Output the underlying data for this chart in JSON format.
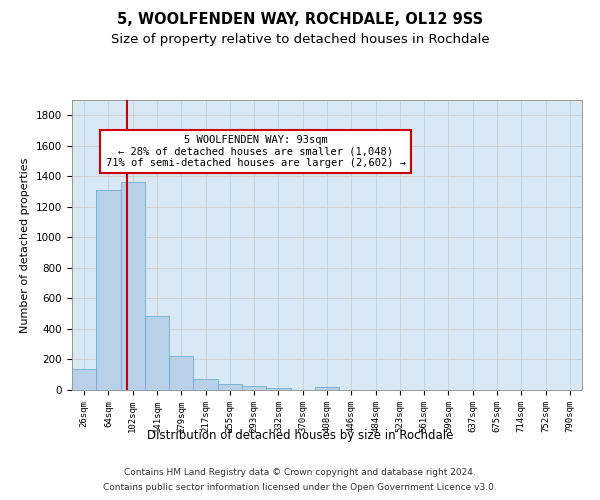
{
  "title1": "5, WOOLFENDEN WAY, ROCHDALE, OL12 9SS",
  "title2": "Size of property relative to detached houses in Rochdale",
  "xlabel": "Distribution of detached houses by size in Rochdale",
  "ylabel": "Number of detached properties",
  "bar_labels": [
    "26sqm",
    "64sqm",
    "102sqm",
    "141sqm",
    "179sqm",
    "217sqm",
    "255sqm",
    "293sqm",
    "332sqm",
    "370sqm",
    "408sqm",
    "446sqm",
    "484sqm",
    "523sqm",
    "561sqm",
    "599sqm",
    "637sqm",
    "675sqm",
    "714sqm",
    "752sqm",
    "790sqm"
  ],
  "bar_values": [
    135,
    1310,
    1360,
    485,
    225,
    75,
    42,
    27,
    14,
    0,
    18,
    0,
    0,
    0,
    0,
    0,
    0,
    0,
    0,
    0,
    0
  ],
  "bar_color": "#b8d0e8",
  "bar_edge_color": "#6aadd5",
  "annotation_text": "5 WOOLFENDEN WAY: 93sqm\n← 28% of detached houses are smaller (1,048)\n71% of semi-detached houses are larger (2,602) →",
  "annotation_box_color": "#ffffff",
  "annotation_box_edge_color": "#cc0000",
  "annotation_line_color": "#cc0000",
  "ylim": [
    0,
    1900
  ],
  "yticks": [
    0,
    200,
    400,
    600,
    800,
    1000,
    1200,
    1400,
    1600,
    1800
  ],
  "grid_color": "#cccccc",
  "background_color": "#d9e8f5",
  "footer1": "Contains HM Land Registry data © Crown copyright and database right 2024.",
  "footer2": "Contains public sector information licensed under the Open Government Licence v3.0.",
  "title1_fontsize": 10.5,
  "title2_fontsize": 9.5,
  "xlabel_fontsize": 8.5,
  "ylabel_fontsize": 8,
  "annotation_fontsize": 7.5,
  "footer_fontsize": 6.5,
  "xtick_fontsize": 6.5,
  "ytick_fontsize": 7.5
}
